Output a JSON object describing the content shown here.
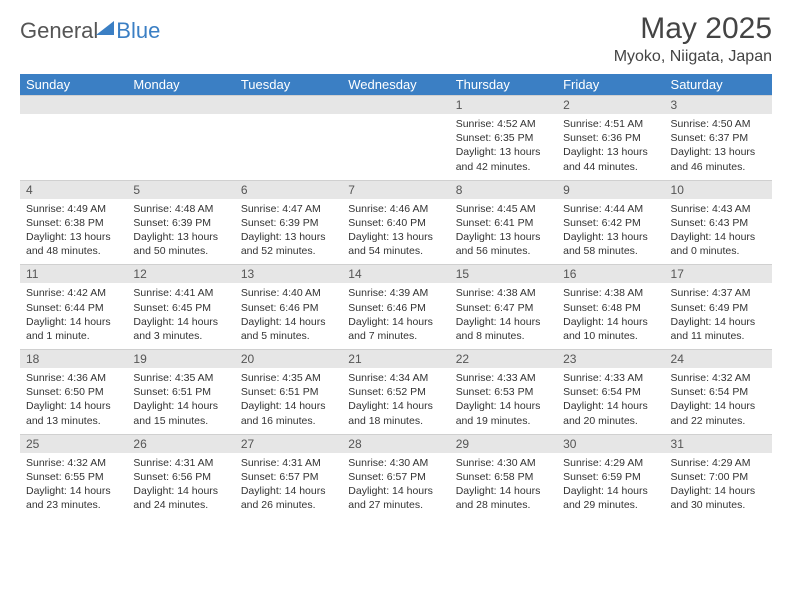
{
  "logo": {
    "part1": "General",
    "part2": "Blue"
  },
  "title": "May 2025",
  "location": "Myoko, Niigata, Japan",
  "colors": {
    "header_bg": "#3b7fc4",
    "header_text": "#ffffff",
    "daynum_bg": "#e6e6e6",
    "text": "#333333",
    "logo_gray": "#555555",
    "logo_blue": "#3b7fc4",
    "background": "#ffffff"
  },
  "typography": {
    "title_fontsize": 30,
    "location_fontsize": 16,
    "header_fontsize": 13,
    "daynum_fontsize": 12,
    "body_fontsize": 10.5
  },
  "calendar": {
    "type": "table",
    "day_headers": [
      "Sunday",
      "Monday",
      "Tuesday",
      "Wednesday",
      "Thursday",
      "Friday",
      "Saturday"
    ],
    "weeks": [
      {
        "nums": [
          "",
          "",
          "",
          "",
          "1",
          "2",
          "3"
        ],
        "cells": [
          null,
          null,
          null,
          null,
          {
            "sunrise": "Sunrise: 4:52 AM",
            "sunset": "Sunset: 6:35 PM",
            "day1": "Daylight: 13 hours",
            "day2": "and 42 minutes."
          },
          {
            "sunrise": "Sunrise: 4:51 AM",
            "sunset": "Sunset: 6:36 PM",
            "day1": "Daylight: 13 hours",
            "day2": "and 44 minutes."
          },
          {
            "sunrise": "Sunrise: 4:50 AM",
            "sunset": "Sunset: 6:37 PM",
            "day1": "Daylight: 13 hours",
            "day2": "and 46 minutes."
          }
        ]
      },
      {
        "nums": [
          "4",
          "5",
          "6",
          "7",
          "8",
          "9",
          "10"
        ],
        "cells": [
          {
            "sunrise": "Sunrise: 4:49 AM",
            "sunset": "Sunset: 6:38 PM",
            "day1": "Daylight: 13 hours",
            "day2": "and 48 minutes."
          },
          {
            "sunrise": "Sunrise: 4:48 AM",
            "sunset": "Sunset: 6:39 PM",
            "day1": "Daylight: 13 hours",
            "day2": "and 50 minutes."
          },
          {
            "sunrise": "Sunrise: 4:47 AM",
            "sunset": "Sunset: 6:39 PM",
            "day1": "Daylight: 13 hours",
            "day2": "and 52 minutes."
          },
          {
            "sunrise": "Sunrise: 4:46 AM",
            "sunset": "Sunset: 6:40 PM",
            "day1": "Daylight: 13 hours",
            "day2": "and 54 minutes."
          },
          {
            "sunrise": "Sunrise: 4:45 AM",
            "sunset": "Sunset: 6:41 PM",
            "day1": "Daylight: 13 hours",
            "day2": "and 56 minutes."
          },
          {
            "sunrise": "Sunrise: 4:44 AM",
            "sunset": "Sunset: 6:42 PM",
            "day1": "Daylight: 13 hours",
            "day2": "and 58 minutes."
          },
          {
            "sunrise": "Sunrise: 4:43 AM",
            "sunset": "Sunset: 6:43 PM",
            "day1": "Daylight: 14 hours",
            "day2": "and 0 minutes."
          }
        ]
      },
      {
        "nums": [
          "11",
          "12",
          "13",
          "14",
          "15",
          "16",
          "17"
        ],
        "cells": [
          {
            "sunrise": "Sunrise: 4:42 AM",
            "sunset": "Sunset: 6:44 PM",
            "day1": "Daylight: 14 hours",
            "day2": "and 1 minute."
          },
          {
            "sunrise": "Sunrise: 4:41 AM",
            "sunset": "Sunset: 6:45 PM",
            "day1": "Daylight: 14 hours",
            "day2": "and 3 minutes."
          },
          {
            "sunrise": "Sunrise: 4:40 AM",
            "sunset": "Sunset: 6:46 PM",
            "day1": "Daylight: 14 hours",
            "day2": "and 5 minutes."
          },
          {
            "sunrise": "Sunrise: 4:39 AM",
            "sunset": "Sunset: 6:46 PM",
            "day1": "Daylight: 14 hours",
            "day2": "and 7 minutes."
          },
          {
            "sunrise": "Sunrise: 4:38 AM",
            "sunset": "Sunset: 6:47 PM",
            "day1": "Daylight: 14 hours",
            "day2": "and 8 minutes."
          },
          {
            "sunrise": "Sunrise: 4:38 AM",
            "sunset": "Sunset: 6:48 PM",
            "day1": "Daylight: 14 hours",
            "day2": "and 10 minutes."
          },
          {
            "sunrise": "Sunrise: 4:37 AM",
            "sunset": "Sunset: 6:49 PM",
            "day1": "Daylight: 14 hours",
            "day2": "and 11 minutes."
          }
        ]
      },
      {
        "nums": [
          "18",
          "19",
          "20",
          "21",
          "22",
          "23",
          "24"
        ],
        "cells": [
          {
            "sunrise": "Sunrise: 4:36 AM",
            "sunset": "Sunset: 6:50 PM",
            "day1": "Daylight: 14 hours",
            "day2": "and 13 minutes."
          },
          {
            "sunrise": "Sunrise: 4:35 AM",
            "sunset": "Sunset: 6:51 PM",
            "day1": "Daylight: 14 hours",
            "day2": "and 15 minutes."
          },
          {
            "sunrise": "Sunrise: 4:35 AM",
            "sunset": "Sunset: 6:51 PM",
            "day1": "Daylight: 14 hours",
            "day2": "and 16 minutes."
          },
          {
            "sunrise": "Sunrise: 4:34 AM",
            "sunset": "Sunset: 6:52 PM",
            "day1": "Daylight: 14 hours",
            "day2": "and 18 minutes."
          },
          {
            "sunrise": "Sunrise: 4:33 AM",
            "sunset": "Sunset: 6:53 PM",
            "day1": "Daylight: 14 hours",
            "day2": "and 19 minutes."
          },
          {
            "sunrise": "Sunrise: 4:33 AM",
            "sunset": "Sunset: 6:54 PM",
            "day1": "Daylight: 14 hours",
            "day2": "and 20 minutes."
          },
          {
            "sunrise": "Sunrise: 4:32 AM",
            "sunset": "Sunset: 6:54 PM",
            "day1": "Daylight: 14 hours",
            "day2": "and 22 minutes."
          }
        ]
      },
      {
        "nums": [
          "25",
          "26",
          "27",
          "28",
          "29",
          "30",
          "31"
        ],
        "cells": [
          {
            "sunrise": "Sunrise: 4:32 AM",
            "sunset": "Sunset: 6:55 PM",
            "day1": "Daylight: 14 hours",
            "day2": "and 23 minutes."
          },
          {
            "sunrise": "Sunrise: 4:31 AM",
            "sunset": "Sunset: 6:56 PM",
            "day1": "Daylight: 14 hours",
            "day2": "and 24 minutes."
          },
          {
            "sunrise": "Sunrise: 4:31 AM",
            "sunset": "Sunset: 6:57 PM",
            "day1": "Daylight: 14 hours",
            "day2": "and 26 minutes."
          },
          {
            "sunrise": "Sunrise: 4:30 AM",
            "sunset": "Sunset: 6:57 PM",
            "day1": "Daylight: 14 hours",
            "day2": "and 27 minutes."
          },
          {
            "sunrise": "Sunrise: 4:30 AM",
            "sunset": "Sunset: 6:58 PM",
            "day1": "Daylight: 14 hours",
            "day2": "and 28 minutes."
          },
          {
            "sunrise": "Sunrise: 4:29 AM",
            "sunset": "Sunset: 6:59 PM",
            "day1": "Daylight: 14 hours",
            "day2": "and 29 minutes."
          },
          {
            "sunrise": "Sunrise: 4:29 AM",
            "sunset": "Sunset: 7:00 PM",
            "day1": "Daylight: 14 hours",
            "day2": "and 30 minutes."
          }
        ]
      }
    ]
  }
}
